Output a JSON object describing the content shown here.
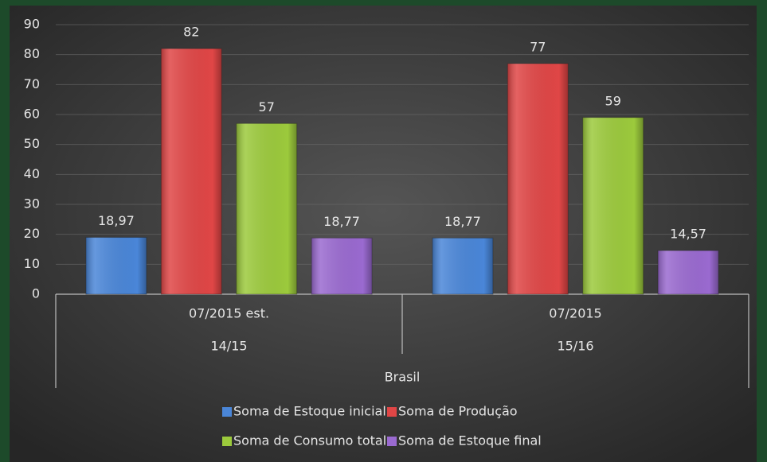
{
  "chart_data": {
    "type": "bar",
    "categories": [
      "07/2015 est.",
      "07/2015"
    ],
    "subcategories": [
      "14/15",
      "15/16"
    ],
    "group_label": "Brasil",
    "series": [
      {
        "name": "Soma de Estoque inicial",
        "color": "#4a86d8",
        "values": [
          18.97,
          18.77
        ],
        "value_labels": [
          "18,97",
          "18,77"
        ]
      },
      {
        "name": "Soma de Produção",
        "color": "#e04646",
        "values": [
          82,
          77
        ],
        "value_labels": [
          "82",
          "77"
        ]
      },
      {
        "name": "Soma de Consumo total",
        "color": "#9cca3c",
        "values": [
          57,
          59
        ],
        "value_labels": [
          "57",
          "59"
        ]
      },
      {
        "name": "Soma de Estoque final",
        "color": "#9a6ad0",
        "values": [
          18.77,
          14.57
        ],
        "value_labels": [
          "18,77",
          "14,57"
        ]
      }
    ],
    "ylim": [
      0,
      90
    ],
    "yticks": [
      0,
      10,
      20,
      30,
      40,
      50,
      60,
      70,
      80,
      90
    ],
    "grid": true,
    "legend": "bottom"
  }
}
